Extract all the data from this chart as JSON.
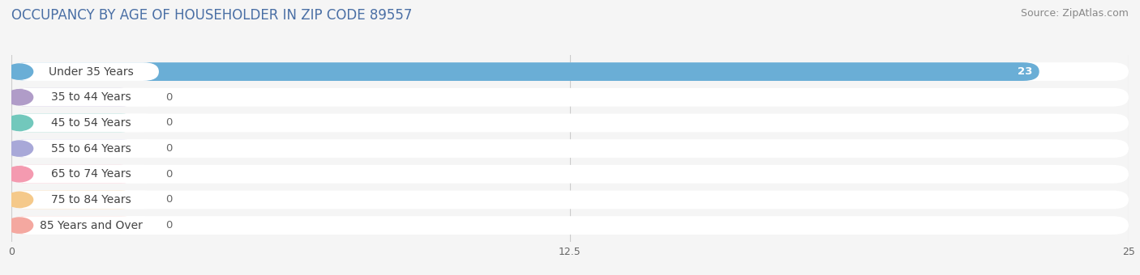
{
  "title": "OCCUPANCY BY AGE OF HOUSEHOLDER IN ZIP CODE 89557",
  "source": "Source: ZipAtlas.com",
  "categories": [
    "Under 35 Years",
    "35 to 44 Years",
    "45 to 54 Years",
    "55 to 64 Years",
    "65 to 74 Years",
    "75 to 84 Years",
    "85 Years and Over"
  ],
  "values": [
    23,
    0,
    0,
    0,
    0,
    0,
    0
  ],
  "bar_colors": [
    "#6aaed6",
    "#b09cc8",
    "#72c8bc",
    "#a8a8d8",
    "#f49ab0",
    "#f5c98a",
    "#f4a8a0"
  ],
  "xlim": [
    0,
    25
  ],
  "xticks": [
    0,
    12.5,
    25
  ],
  "background_color": "#f5f5f5",
  "row_bg_color": "#ffffff",
  "grid_color": "#cccccc",
  "title_fontsize": 12,
  "source_fontsize": 9,
  "label_fontsize": 10,
  "value_fontsize": 9.5
}
